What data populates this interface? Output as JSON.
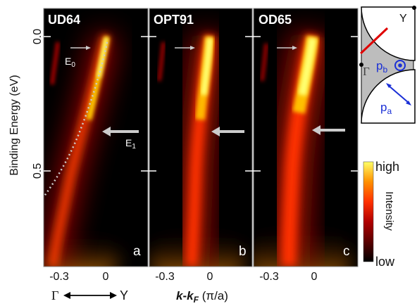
{
  "chart_data": [
    {
      "type": "heatmap",
      "panel_title": "UD64",
      "panel_letter": "a",
      "x": [
        -0.4,
        0.15
      ],
      "y": [
        -0.1,
        0.95
      ],
      "dispersion": [
        [
          -0.42,
          0.93
        ],
        [
          -0.35,
          0.78
        ],
        [
          -0.28,
          0.62
        ],
        [
          -0.2,
          0.45
        ],
        [
          -0.14,
          0.33
        ],
        [
          -0.1,
          0.22
        ],
        [
          -0.07,
          0.13
        ],
        [
          -0.04,
          0.06
        ],
        [
          -0.01,
          0.0
        ]
      ],
      "annotations": [
        {
          "text": "E",
          "sub": "0",
          "energy": 0.05
        },
        {
          "text": "E",
          "sub": "1",
          "energy": 0.27
        }
      ],
      "dotted_curve": "bare band"
    },
    {
      "type": "heatmap",
      "panel_title": "OPT91",
      "panel_letter": "b",
      "x": [
        -0.4,
        0.15
      ],
      "y": [
        -0.1,
        0.95
      ],
      "dispersion": [
        [
          -0.15,
          0.93
        ],
        [
          -0.12,
          0.7
        ],
        [
          -0.1,
          0.5
        ],
        [
          -0.08,
          0.35
        ],
        [
          -0.07,
          0.2
        ],
        [
          -0.04,
          0.1
        ],
        [
          -0.01,
          0.0
        ]
      ],
      "annotations": [
        {
          "energy": 0.05
        },
        {
          "energy": 0.27
        }
      ]
    },
    {
      "type": "heatmap",
      "panel_title": "OD65",
      "panel_letter": "c",
      "x": [
        -0.4,
        0.15
      ],
      "y": [
        -0.1,
        0.95
      ],
      "dispersion": [
        [
          -0.22,
          0.93
        ],
        [
          -0.2,
          0.65
        ],
        [
          -0.18,
          0.45
        ],
        [
          -0.15,
          0.3
        ],
        [
          -0.1,
          0.15
        ],
        [
          -0.05,
          0.05
        ],
        [
          -0.02,
          0.0
        ]
      ],
      "annotations": [
        {
          "energy": 0.05
        },
        {
          "energy": 0.27
        }
      ]
    }
  ],
  "axes": {
    "ylabel": "Binding Energy (eV)",
    "yticks": [
      "0.0",
      "0.5"
    ],
    "xticks": [
      "-0.3",
      "0"
    ],
    "xlabel_k": "k",
    "xlabel_kf": "k",
    "xlabel_kf_sub": "F",
    "xlabel_units": "(π/a)",
    "dir_left": "Γ",
    "dir_right": "Y"
  },
  "colorbar": {
    "label": "Intensity",
    "high": "high",
    "low": "low",
    "colors": [
      "#000000",
      "#5a0000",
      "#b00000",
      "#ff3000",
      "#ff9000",
      "#ffff66"
    ]
  },
  "inset": {
    "gamma": "Γ",
    "y": "Y",
    "pb": "p",
    "pb_sub": "b",
    "pa": "p",
    "pa_sub": "a",
    "cut_color": "#e00000",
    "vector_color": "#1a2fd6"
  }
}
